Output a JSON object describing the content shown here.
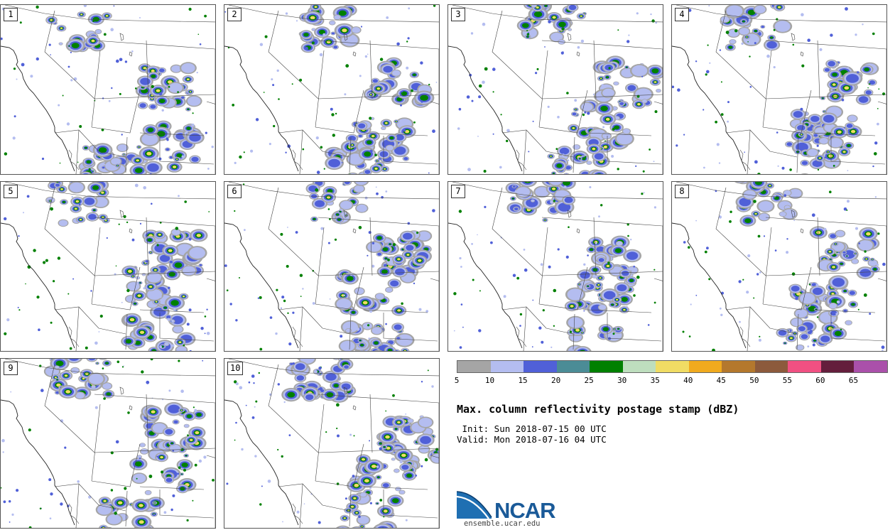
{
  "title": "Max. column reflectivity postage stamp (dBZ)",
  "init_line": " Init: Sun 2018-07-15 00 UTC",
  "valid_line": "Valid: Mon 2018-07-16 04 UTC",
  "logo": {
    "name": "NCAR",
    "url": "ensemble.ucar.edu"
  },
  "panels": [
    {
      "label": "1"
    },
    {
      "label": "2"
    },
    {
      "label": "3"
    },
    {
      "label": "4"
    },
    {
      "label": "5"
    },
    {
      "label": "6"
    },
    {
      "label": "7"
    },
    {
      "label": "8"
    },
    {
      "label": "9"
    },
    {
      "label": "10"
    }
  ],
  "colorbar": {
    "unit": "dBZ",
    "ticks": [
      "5",
      "10",
      "15",
      "20",
      "25",
      "30",
      "35",
      "40",
      "45",
      "50",
      "55",
      "60",
      "65"
    ],
    "colors": [
      "#a5a5a5",
      "#b4bdf0",
      "#5060d8",
      "#4b8c96",
      "#008000",
      "#bedebe",
      "#f0dc64",
      "#f0aa1e",
      "#b4782d",
      "#8c5a3c",
      "#f05082",
      "#641e3c",
      "#aa50aa"
    ]
  }
}
